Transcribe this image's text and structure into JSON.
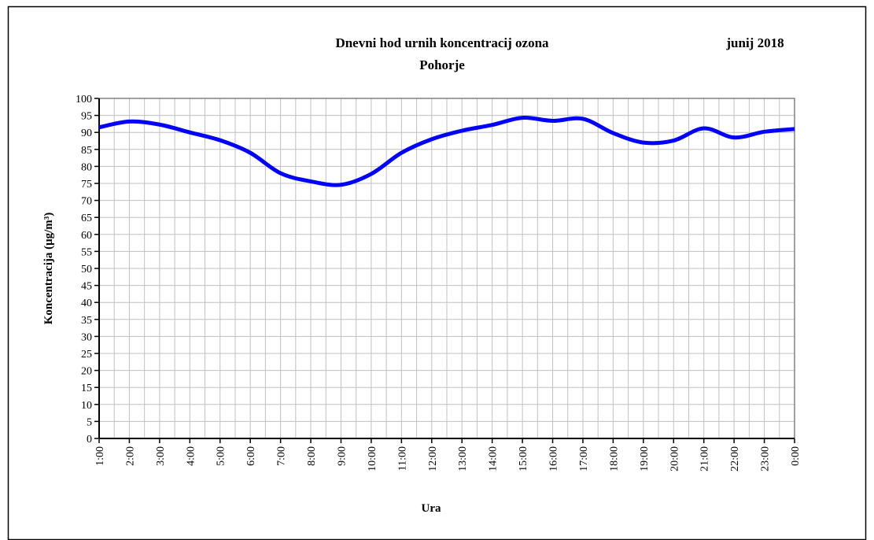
{
  "chart_data": {
    "type": "line",
    "title": "Dnevni hod urnih koncentracij ozona",
    "subtitle": "Pohorje",
    "annotation": "junij 2018",
    "y_label": "Koncentracija  (μg/m³)",
    "x_label": "Ura",
    "categories": [
      "1:00",
      "2:00",
      "3:00",
      "4:00",
      "5:00",
      "6:00",
      "7:00",
      "8:00",
      "9:00",
      "10:00",
      "11:00",
      "12:00",
      "13:00",
      "14:00",
      "15:00",
      "16:00",
      "17:00",
      "18:00",
      "19:00",
      "20:00",
      "21:00",
      "22:00",
      "23:00",
      "0:00"
    ],
    "series": [
      {
        "name": "Pohorje",
        "color": "#0000ff",
        "values": [
          91.5,
          93.2,
          92.3,
          90,
          87.7,
          84,
          78,
          75.6,
          74.6,
          77.8,
          84,
          88,
          90.5,
          92.2,
          94.3,
          93.4,
          94,
          89.8,
          87,
          87.6,
          91.2,
          88.5,
          90.2,
          91
        ]
      }
    ],
    "ylim": [
      0,
      100
    ],
    "yticks": [
      0,
      5,
      10,
      15,
      20,
      25,
      30,
      35,
      40,
      45,
      50,
      55,
      60,
      65,
      70,
      75,
      80,
      85,
      90,
      95,
      100
    ],
    "grid": true
  }
}
